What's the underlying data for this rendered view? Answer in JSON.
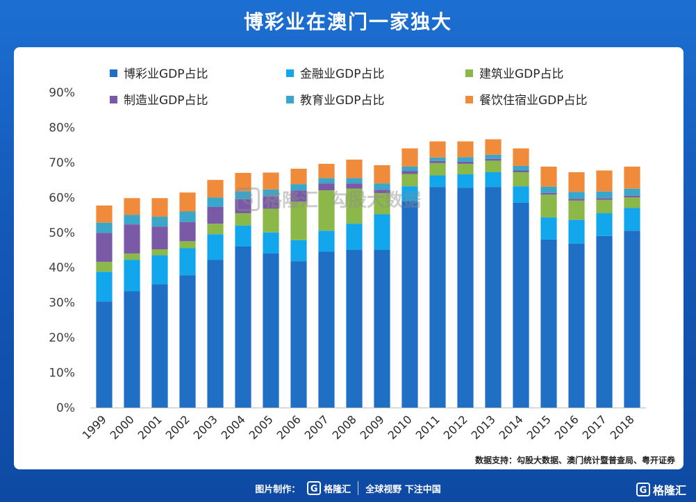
{
  "page": {
    "title": "博彩业在澳门一家独大",
    "source": "数据支持：勾股大数据、澳门统计暨普查局、粤开证券",
    "footer_label": "图片制作：",
    "footer_brand": "格隆汇",
    "footer_slogan": "全球视野 下注中国",
    "corner_brand": "格隆汇",
    "watermark_left": "格隆汇",
    "watermark_right": "勾股大数据"
  },
  "colors": {
    "gaming": "#1f6fc5",
    "finance": "#12a7ec",
    "construction": "#8cb84a",
    "manufacturing": "#7a5aa6",
    "education": "#3aa6c9",
    "catering": "#ef8b3a"
  },
  "chart_data": {
    "type": "bar",
    "stacked": true,
    "title": "",
    "xlabel": "",
    "ylabel": "",
    "ylim": [
      0,
      90
    ],
    "yticks": [
      "0%",
      "10%",
      "20%",
      "30%",
      "40%",
      "50%",
      "60%",
      "70%",
      "80%",
      "90%"
    ],
    "grid": false,
    "legend_position": "top",
    "categories": [
      "1999",
      "2000",
      "2001",
      "2002",
      "2003",
      "2004",
      "2005",
      "2006",
      "2007",
      "2008",
      "2009",
      "2010",
      "2011",
      "2012",
      "2013",
      "2014",
      "2015",
      "2016",
      "2017",
      "2018"
    ],
    "series": [
      {
        "name": "博彩业GDP占比",
        "color_key": "gaming",
        "values": [
          30.3,
          33.2,
          35.2,
          37.8,
          42.2,
          46.0,
          44.0,
          41.8,
          44.5,
          45.0,
          45.0,
          59.0,
          63.0,
          62.8,
          63.0,
          58.5,
          48.0,
          46.8,
          49.0,
          50.5
        ]
      },
      {
        "name": "金融业GDP占比",
        "color_key": "finance",
        "values": [
          8.5,
          9.0,
          8.3,
          7.7,
          7.3,
          6.0,
          6.0,
          6.0,
          6.0,
          7.5,
          10.2,
          4.2,
          3.3,
          3.8,
          4.2,
          4.7,
          6.3,
          6.8,
          6.5,
          6.5
        ]
      },
      {
        "name": "建筑业GDP占比",
        "color_key": "construction",
        "values": [
          2.8,
          1.8,
          1.7,
          2.0,
          3.0,
          3.5,
          6.8,
          11.0,
          11.5,
          10.0,
          6.0,
          3.5,
          3.5,
          3.0,
          3.3,
          4.0,
          6.5,
          5.5,
          3.8,
          3.0
        ]
      },
      {
        "name": "制造业GDP占比",
        "color_key": "manufacturing",
        "values": [
          8.3,
          8.3,
          6.5,
          5.5,
          4.8,
          4.0,
          3.5,
          3.2,
          2.0,
          1.5,
          1.0,
          0.8,
          0.6,
          0.6,
          0.5,
          0.5,
          0.5,
          0.5,
          0.5,
          0.5
        ]
      },
      {
        "name": "教育业GDP占比",
        "color_key": "education",
        "values": [
          2.9,
          2.7,
          2.8,
          3.0,
          2.7,
          2.3,
          2.0,
          1.8,
          1.5,
          1.5,
          1.8,
          1.3,
          1.0,
          1.3,
          1.2,
          1.3,
          1.8,
          2.0,
          1.9,
          2.0
        ]
      },
      {
        "name": "餐饮住宿业GDP占比",
        "color_key": "catering",
        "values": [
          4.9,
          4.8,
          5.3,
          5.4,
          5.0,
          5.2,
          4.8,
          4.4,
          4.1,
          5.3,
          5.2,
          5.2,
          4.6,
          4.5,
          4.4,
          5.0,
          5.7,
          5.6,
          6.0,
          6.3
        ]
      }
    ]
  }
}
